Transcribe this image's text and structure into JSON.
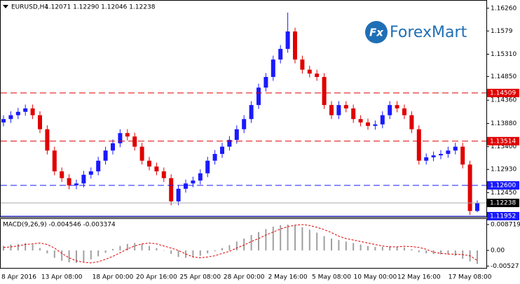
{
  "chart_data": [
    {
      "type": "candlestick",
      "symbol": "EURUSD,H4",
      "quote": "1.12071 1.12290 1.12046 1.12238",
      "watermark": "ForexMart",
      "logo": "Fx",
      "categories": [
        null,
        null,
        "8 Apr 2016",
        null,
        null,
        null,
        null,
        null,
        "13 Apr 08:00",
        null,
        null,
        null,
        null,
        null,
        null,
        "18 Apr 00:00",
        null,
        null,
        null,
        null,
        null,
        "20 Apr 16:00",
        null,
        null,
        null,
        null,
        null,
        "25 Apr 08:00",
        null,
        null,
        null,
        null,
        null,
        "28 Apr 00:00",
        null,
        null,
        null,
        null,
        null,
        "2 May 16:00",
        null,
        null,
        null,
        null,
        null,
        "5 May 08:00",
        null,
        null,
        null,
        null,
        null,
        "10 May 00:00",
        null,
        null,
        null,
        null,
        null,
        "12 May 16:00",
        null,
        null,
        null,
        null,
        null,
        null,
        "17 May 08:00",
        null
      ],
      "open": [
        1.139,
        1.1397,
        1.1405,
        1.1412,
        1.1419,
        1.1405,
        1.1376,
        1.1332,
        1.1289,
        1.1275,
        1.126,
        1.1264,
        1.1282,
        1.1289,
        1.1311,
        1.1332,
        1.1347,
        1.1368,
        1.1361,
        1.134,
        1.1311,
        1.1299,
        1.1289,
        1.1275,
        1.1227,
        1.1253,
        1.1264,
        1.127,
        1.1285,
        1.1311,
        1.1325,
        1.134,
        1.1354,
        1.1376,
        1.1397,
        1.1426,
        1.1462,
        1.1484,
        1.152,
        1.1542,
        1.1578,
        1.152,
        1.1499,
        1.1491,
        1.1484,
        1.1426,
        1.1405,
        1.1426,
        1.1419,
        1.1397,
        1.139,
        1.1383,
        1.1386,
        1.1405,
        1.1426,
        1.1419,
        1.1405,
        1.1376,
        1.1311,
        1.1318,
        1.1322,
        1.1325,
        1.1332,
        1.134,
        1.1303,
        1.12071
      ],
      "high": [
        1.1405,
        1.1413,
        1.142,
        1.1427,
        1.1427,
        1.1413,
        1.1384,
        1.134,
        1.1297,
        1.1283,
        1.1272,
        1.129,
        1.1297,
        1.1319,
        1.134,
        1.1355,
        1.1376,
        1.1376,
        1.1369,
        1.1348,
        1.1319,
        1.1307,
        1.1297,
        1.1283,
        1.1261,
        1.1272,
        1.1278,
        1.1293,
        1.1319,
        1.1333,
        1.1348,
        1.1362,
        1.1384,
        1.1405,
        1.1434,
        1.147,
        1.1492,
        1.1528,
        1.155,
        1.1617,
        1.1586,
        1.1528,
        1.1507,
        1.1499,
        1.1492,
        1.1434,
        1.1434,
        1.1434,
        1.1427,
        1.1405,
        1.1398,
        1.1394,
        1.1413,
        1.1434,
        1.1434,
        1.1427,
        1.1413,
        1.1384,
        1.1326,
        1.133,
        1.1333,
        1.134,
        1.1348,
        1.1348,
        1.1311,
        1.1229
      ],
      "low": [
        1.1382,
        1.1389,
        1.1397,
        1.1404,
        1.1397,
        1.1368,
        1.1324,
        1.1281,
        1.1267,
        1.1252,
        1.1252,
        1.1256,
        1.1274,
        1.1281,
        1.1303,
        1.1324,
        1.1339,
        1.1353,
        1.1332,
        1.1303,
        1.1291,
        1.1281,
        1.1267,
        1.1219,
        1.1219,
        1.1245,
        1.1256,
        1.1262,
        1.1277,
        1.1303,
        1.1317,
        1.1332,
        1.1346,
        1.1368,
        1.1389,
        1.1418,
        1.1454,
        1.1476,
        1.1512,
        1.1534,
        1.1512,
        1.1491,
        1.1483,
        1.1476,
        1.1418,
        1.1397,
        1.1397,
        1.1411,
        1.1389,
        1.1382,
        1.1375,
        1.1375,
        1.1378,
        1.1397,
        1.1411,
        1.1397,
        1.1368,
        1.1303,
        1.1303,
        1.131,
        1.1314,
        1.1317,
        1.1324,
        1.1295,
        1.1199,
        1.12046
      ],
      "close": [
        1.1397,
        1.1405,
        1.1412,
        1.1419,
        1.1405,
        1.1376,
        1.1332,
        1.1289,
        1.1275,
        1.126,
        1.1264,
        1.1282,
        1.1289,
        1.1311,
        1.1332,
        1.1347,
        1.1368,
        1.1361,
        1.134,
        1.1311,
        1.1299,
        1.1289,
        1.1275,
        1.1227,
        1.1253,
        1.1264,
        1.127,
        1.1285,
        1.1311,
        1.1325,
        1.134,
        1.1354,
        1.1376,
        1.1397,
        1.1426,
        1.1462,
        1.1484,
        1.152,
        1.1542,
        1.1578,
        1.152,
        1.1499,
        1.1491,
        1.1484,
        1.1426,
        1.1405,
        1.1426,
        1.1419,
        1.1397,
        1.139,
        1.1383,
        1.1386,
        1.1405,
        1.1426,
        1.1419,
        1.1405,
        1.1376,
        1.1311,
        1.1318,
        1.1322,
        1.1325,
        1.1332,
        1.134,
        1.1303,
        1.12071,
        1.12238
      ],
      "up_color": "#1a1aff",
      "down_color": "#e00000",
      "ylim": [
        1.1195,
        1.1643
      ],
      "yticks": [
        {
          "value": 1.1626,
          "label": "1.16260"
        },
        1.1579,
        {
          "value": 1.1531,
          "label": "1.15310"
        },
        {
          "value": 1.1485,
          "label": "1.14850"
        },
        {
          "value": 1.1436,
          "label": "1.14360"
        },
        {
          "value": 1.1388,
          "label": "1.13880"
        },
        {
          "value": 1.134,
          "label": "1.13400"
        },
        {
          "value": 1.1293,
          "label": "1.12930"
        },
        {
          "value": 1.1245,
          "label": "1.12450"
        }
      ],
      "levels": [
        {
          "value": 1.14509,
          "label": "1.14509",
          "color": "#e00000",
          "style": "dashed"
        },
        {
          "value": 1.13514,
          "label": "1.13514",
          "color": "#e00000",
          "style": "dashed"
        },
        {
          "value": 1.126,
          "label": "1.12600",
          "color": "#1a1aff",
          "style": "dashed"
        },
        {
          "value": 1.11952,
          "label": "1.11952",
          "color": "#1a1aff",
          "style": "solid"
        }
      ]
    },
    {
      "type": "macd",
      "label": "MACD(9,26,9) -0.004546 -0.003374",
      "histogram": [
        0.0015,
        0.002,
        0.0022,
        0.0025,
        0.002,
        0.0008,
        -0.001,
        -0.0025,
        -0.0035,
        -0.004,
        -0.0042,
        -0.0038,
        -0.003,
        -0.002,
        -0.0008,
        0.0005,
        0.0015,
        0.0022,
        0.0025,
        0.0022,
        0.0015,
        0.0008,
        0.0,
        -0.0012,
        -0.0022,
        -0.0025,
        -0.0022,
        -0.0018,
        -0.001,
        -0.0003,
        0.0008,
        0.0018,
        0.003,
        0.004,
        0.0052,
        0.0062,
        0.0072,
        0.008,
        0.0085,
        0.0087,
        0.0084,
        0.0078,
        0.007,
        0.006,
        0.0048,
        0.004,
        0.0035,
        0.003,
        0.0025,
        0.002,
        0.0015,
        0.0012,
        0.0012,
        0.0014,
        0.0013,
        0.001,
        0.0004,
        -0.0006,
        -0.001,
        -0.0012,
        -0.0013,
        -0.0014,
        -0.0018,
        -0.0028,
        -0.0037,
        -0.004546
      ],
      "signal": [
        0.001,
        0.0012,
        0.0015,
        0.002,
        0.0022,
        0.0025,
        0.002,
        0.0008,
        -0.001,
        -0.0025,
        -0.0035,
        -0.004,
        -0.0042,
        -0.0038,
        -0.003,
        -0.002,
        -0.0008,
        0.0005,
        0.0015,
        0.0022,
        0.0025,
        0.0022,
        0.0015,
        0.0008,
        0.0,
        -0.0012,
        -0.0022,
        -0.0025,
        -0.0022,
        -0.0018,
        -0.001,
        -0.0003,
        0.0008,
        0.0018,
        0.003,
        0.004,
        0.0052,
        0.0062,
        0.0072,
        0.008,
        0.0085,
        0.0087,
        0.0084,
        0.0078,
        0.007,
        0.006,
        0.0048,
        0.004,
        0.0035,
        0.003,
        0.0025,
        0.002,
        0.0015,
        0.0012,
        0.0012,
        0.0014,
        0.0013,
        0.001,
        0.0004,
        -0.0006,
        -0.001,
        -0.0012,
        -0.0013,
        -0.0014,
        -0.0018,
        -0.003374
      ],
      "hist_color": "#a0a0a0",
      "signal_color": "#e00000",
      "ylim": [
        -0.00589,
        0.01084
      ],
      "yticks": [
        0.008719,
        {
          "value": 0,
          "label": "0.00"
        },
        -0.00527
      ]
    }
  ]
}
